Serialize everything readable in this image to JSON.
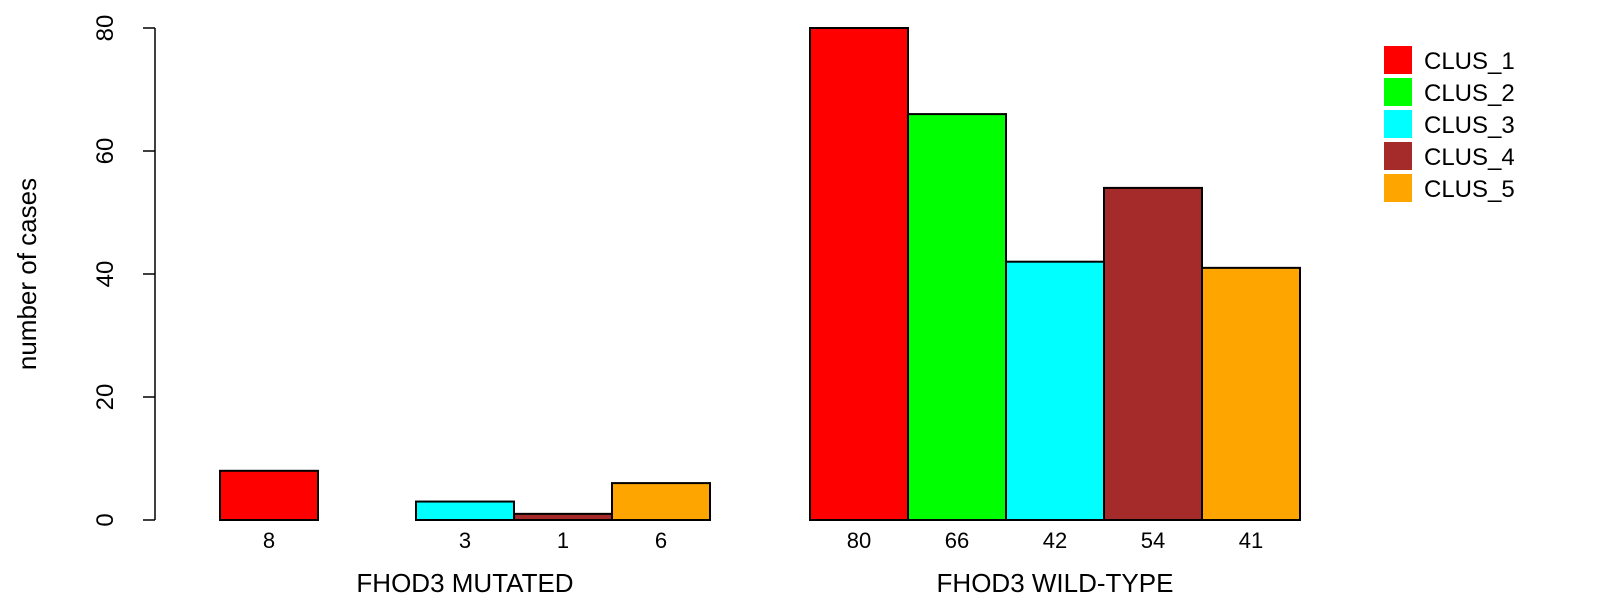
{
  "chart_data": {
    "type": "bar",
    "ylabel": "number of cases",
    "ylim": [
      0,
      80
    ],
    "yticks": [
      0,
      20,
      40,
      60,
      80
    ],
    "grid": false,
    "legend_position": "top-right",
    "groups": [
      {
        "name": "FHOD3 MUTATED",
        "values": [
          8,
          0,
          3,
          1,
          6
        ],
        "labels": [
          "8",
          "",
          "3",
          "1",
          "6"
        ]
      },
      {
        "name": "FHOD3 WILD-TYPE",
        "values": [
          80,
          66,
          42,
          54,
          41
        ],
        "labels": [
          "80",
          "66",
          "42",
          "54",
          "41"
        ]
      }
    ],
    "series": [
      {
        "name": "CLUS_1",
        "color": "#ff0000"
      },
      {
        "name": "CLUS_2",
        "color": "#00ff00"
      },
      {
        "name": "CLUS_3",
        "color": "#00ffff"
      },
      {
        "name": "CLUS_4",
        "color": "#a52a2a"
      },
      {
        "name": "CLUS_5",
        "color": "#ffa500"
      }
    ]
  }
}
